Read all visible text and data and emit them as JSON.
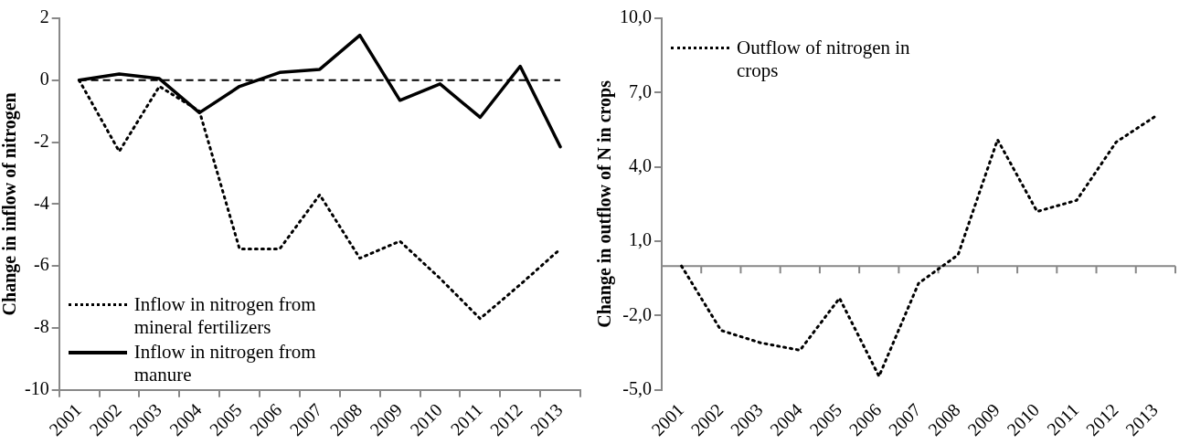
{
  "chart_data": [
    {
      "type": "line",
      "ylabel": "Change in inflow of nitrogen",
      "categories": [
        "2001",
        "2002",
        "2003",
        "2004",
        "2005",
        "2006",
        "2007",
        "2008",
        "2009",
        "2010",
        "2011",
        "2012",
        "2013"
      ],
      "series": [
        {
          "name": "Inflow in nitrogen from mineral fertilizers",
          "color": "#000000",
          "line_style": "dotted",
          "values": [
            0,
            -2.3,
            -0.2,
            -1.0,
            -5.45,
            -5.45,
            -3.7,
            -5.75,
            -5.2,
            -6.4,
            -7.7,
            -6.6,
            -5.45
          ]
        },
        {
          "name": "Inflow in nitrogen from manure",
          "color": "#000000",
          "line_style": "solid",
          "values": [
            0,
            0.2,
            0.05,
            -1.05,
            -0.2,
            0.25,
            0.35,
            1.45,
            -0.65,
            -0.12,
            -1.2,
            0.45,
            -2.15
          ]
        }
      ],
      "ylim": [
        -10,
        2
      ],
      "yticks": [
        -10,
        -8,
        -6,
        -4,
        -2,
        0,
        2
      ],
      "ref_lines": [
        {
          "axis": "y",
          "value": 0,
          "color": "#000000",
          "line_style": "dashed"
        }
      ],
      "legend": "bottom left",
      "marker": "none"
    },
    {
      "type": "line",
      "ylabel": "Change in outflow of N in crops",
      "categories": [
        "2001",
        "2002",
        "2003",
        "2004",
        "2005",
        "2006",
        "2007",
        "2008",
        "2009",
        "2010",
        "2011",
        "2012",
        "2013"
      ],
      "series": [
        {
          "name": "Outflow of nitrogen in crops",
          "color": "#000000",
          "line_style": "dotted",
          "values": [
            0,
            -2.6,
            -3.1,
            -3.4,
            -1.3,
            -4.45,
            -0.7,
            0.45,
            5.1,
            2.2,
            2.65,
            5.0,
            6.05
          ]
        }
      ],
      "ylim": [
        -5,
        10
      ],
      "yticks": [
        {
          "value": -5,
          "label": "-5,0"
        },
        {
          "value": -2,
          "label": "-2,0"
        },
        {
          "value": 1,
          "label": "1,0"
        },
        {
          "value": 4,
          "label": "4,0"
        },
        {
          "value": 7,
          "label": "7,0"
        },
        {
          "value": 10,
          "label": "10,0"
        }
      ],
      "ref_lines": [
        {
          "axis": "y",
          "value": 0,
          "color": "#888888"
        }
      ],
      "legend": "top left",
      "marker": "none"
    }
  ]
}
